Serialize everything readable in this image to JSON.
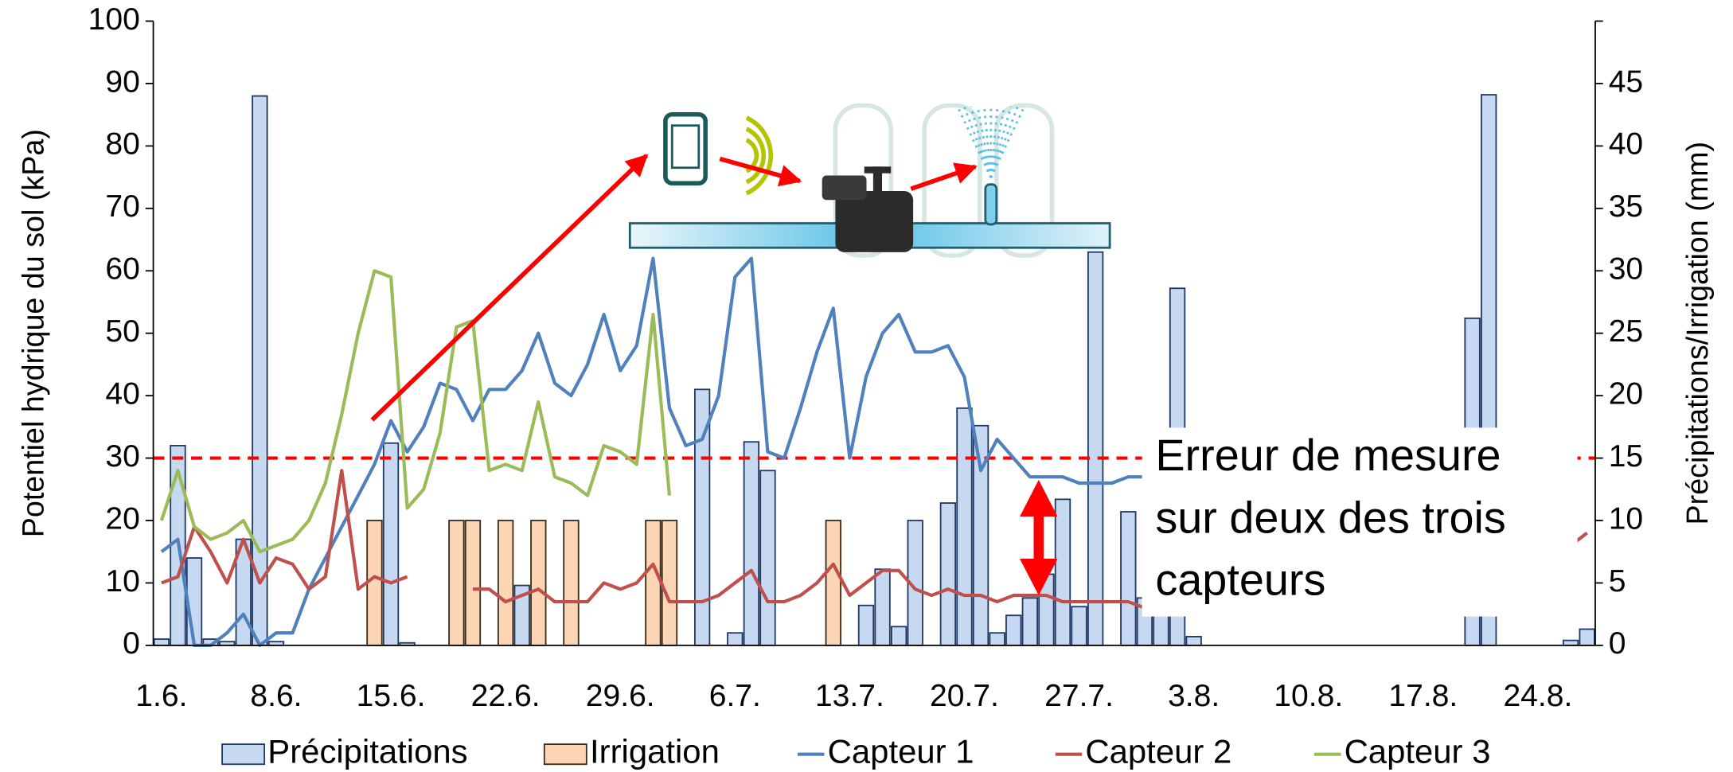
{
  "chart_data": {
    "type": "combo",
    "ylabel": "Potentiel hydrique du sol (kPa)",
    "y2label": "Précipitations/Irrigation (mm)",
    "categories": [
      "1.6.",
      null,
      null,
      null,
      null,
      null,
      null,
      "8.6.",
      null,
      null,
      null,
      null,
      null,
      null,
      "15.6.",
      null,
      null,
      null,
      null,
      null,
      null,
      "22.6.",
      null,
      null,
      null,
      null,
      null,
      null,
      "29.6.",
      null,
      null,
      null,
      null,
      null,
      null,
      "6.7.",
      null,
      null,
      null,
      null,
      null,
      null,
      "13.7.",
      null,
      null,
      null,
      null,
      null,
      null,
      "20.7.",
      null,
      null,
      null,
      null,
      null,
      null,
      "27.7.",
      null,
      null,
      null,
      null,
      null,
      null,
      "3.8.",
      null,
      null,
      null,
      null,
      null,
      null,
      "10.8.",
      null,
      null,
      null,
      null,
      null,
      null,
      "17.8.",
      null,
      null,
      null,
      null,
      null,
      null,
      "24.8.",
      null,
      null,
      null
    ],
    "ylim": [
      0,
      100
    ],
    "yticks": [
      0,
      10,
      20,
      30,
      40,
      50,
      60,
      70,
      80,
      90,
      100
    ],
    "y2lim": [
      0,
      50
    ],
    "y2ticks": [
      0,
      5,
      10,
      15,
      20,
      25,
      30,
      35,
      40,
      45
    ],
    "threshold": {
      "value": 30,
      "color": "#ff0000"
    },
    "series": [
      {
        "name": "Précipitations",
        "kind": "bar",
        "axis": "y2",
        "color": "#c6d9f1",
        "edge": "#1f3864",
        "values": [
          0.5,
          16,
          7,
          0.5,
          0.3,
          8.5,
          44,
          0.3,
          null,
          null,
          null,
          null,
          null,
          null,
          16.2,
          0.2,
          null,
          null,
          null,
          null,
          null,
          null,
          4.8,
          null,
          null,
          null,
          null,
          null,
          null,
          null,
          null,
          null,
          null,
          20.5,
          null,
          1,
          16.3,
          14,
          null,
          null,
          null,
          null,
          null,
          3.2,
          6.1,
          1.5,
          10,
          null,
          11.4,
          19,
          17.6,
          1,
          2.4,
          3.8,
          5.7,
          11.7,
          3.1,
          31.5,
          null,
          10.7,
          3.8,
          4,
          28.6,
          0.7,
          null,
          null,
          null,
          null,
          null,
          null,
          null,
          null,
          null,
          null,
          null,
          null,
          null,
          null,
          null,
          null,
          26.2,
          44.1,
          null,
          null,
          null,
          null,
          0.4,
          1.3
        ]
      },
      {
        "name": "Irrigation",
        "kind": "bar",
        "axis": "y2",
        "color": "#fcd5b4",
        "edge": "#3a2a1a",
        "values": [
          null,
          null,
          null,
          null,
          null,
          null,
          null,
          null,
          null,
          null,
          null,
          null,
          null,
          10,
          null,
          null,
          null,
          null,
          10,
          10,
          null,
          10,
          null,
          10,
          null,
          10,
          null,
          null,
          null,
          null,
          10,
          10,
          null,
          null,
          null,
          null,
          null,
          null,
          null,
          null,
          null,
          10,
          null,
          null,
          null,
          null,
          null,
          null,
          null,
          null,
          null,
          null,
          null,
          null,
          null,
          null,
          null,
          null,
          null,
          null,
          null,
          null,
          null,
          null,
          null,
          null,
          null,
          null,
          null,
          null,
          null,
          null,
          null,
          null,
          null,
          null,
          null,
          null,
          null,
          null,
          null,
          null,
          null,
          null,
          null,
          null,
          null,
          null
        ]
      },
      {
        "name": "Capteur 1",
        "kind": "line",
        "color": "#4f81bd",
        "values": [
          15,
          17,
          0,
          0,
          2,
          5,
          0,
          2,
          2,
          9,
          14,
          19,
          24,
          29,
          36,
          31,
          35,
          42,
          41,
          36,
          41,
          41,
          44,
          50,
          42,
          40,
          45,
          53,
          44,
          48,
          62,
          38,
          32,
          33,
          40,
          59,
          62,
          31,
          30,
          38,
          47,
          54,
          30,
          43,
          50,
          53,
          47,
          47,
          48,
          43,
          28,
          33,
          30,
          27,
          27,
          27,
          26,
          26,
          26,
          27,
          27,
          null,
          null,
          null,
          null,
          null,
          null,
          null,
          null,
          null,
          null,
          null,
          null,
          null,
          null,
          null,
          null,
          null,
          null,
          null,
          null,
          null,
          null,
          null,
          null,
          null,
          null,
          null
        ]
      },
      {
        "name": "Capteur 2",
        "kind": "line",
        "color": "#c0504d",
        "values": [
          10,
          11,
          19,
          15,
          10,
          17,
          10,
          14,
          13,
          9,
          11,
          28,
          9,
          11,
          10,
          11,
          null,
          null,
          null,
          9,
          9,
          7,
          8,
          9,
          7,
          7,
          7,
          10,
          9,
          10,
          13,
          7,
          7,
          7,
          8,
          10,
          12,
          7,
          7,
          8,
          10,
          13,
          8,
          10,
          12,
          12,
          9,
          8,
          9,
          8,
          8,
          7,
          8,
          8,
          8,
          7,
          7,
          7,
          7,
          7,
          6,
          null,
          null,
          null,
          null,
          null,
          null,
          null,
          null,
          null,
          null,
          null,
          null,
          null,
          null,
          null,
          null,
          null,
          null,
          null,
          null,
          null,
          null,
          null,
          null,
          null,
          16,
          18
        ]
      },
      {
        "name": "Capteur 3",
        "kind": "line",
        "color": "#9bbb59",
        "values": [
          20,
          28,
          19,
          17,
          18,
          20,
          15,
          16,
          17,
          20,
          26,
          37,
          50,
          60,
          59,
          22,
          25,
          34,
          51,
          52,
          28,
          29,
          28,
          39,
          27,
          26,
          24,
          32,
          31,
          29,
          53,
          24,
          null,
          null,
          null,
          null,
          null,
          null,
          null,
          null,
          null,
          null,
          null,
          null,
          null,
          null,
          null,
          null,
          null,
          null,
          null,
          null,
          null,
          null,
          null,
          null,
          null,
          null,
          null,
          null,
          null,
          null,
          null,
          null,
          null,
          null,
          null,
          null,
          null,
          null,
          null,
          null,
          null,
          null,
          null,
          null,
          null,
          null,
          null,
          null,
          null,
          null,
          null,
          null,
          null,
          null,
          null,
          null
        ]
      }
    ],
    "annotation": [
      "Erreur de mesure",
      "sur deux des trois",
      "capteurs"
    ]
  }
}
